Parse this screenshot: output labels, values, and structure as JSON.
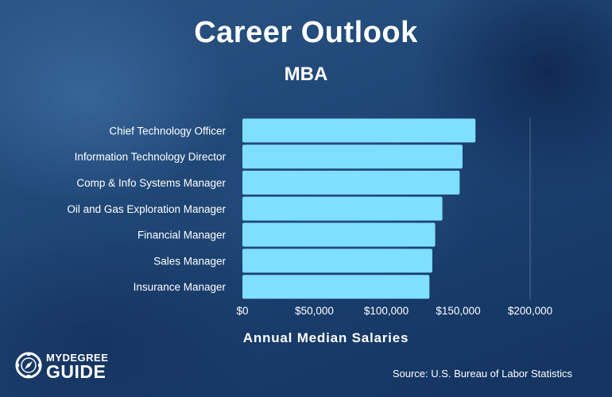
{
  "header": {
    "title": "Career Outlook",
    "subtitle": "MBA"
  },
  "chart_data": {
    "type": "bar",
    "orientation": "horizontal",
    "title": "Career Outlook",
    "subtitle": "MBA",
    "xlabel": "Annual Median Salaries",
    "ylabel": "",
    "categories": [
      "Chief Technology Officer",
      "Information Technology Director",
      "Comp & Info Systems Manager",
      "Oil and Gas Exploration Manager",
      "Financial Manager",
      "Sales Manager",
      "Insurance Manager"
    ],
    "values": [
      162000,
      153000,
      151000,
      139000,
      134000,
      132000,
      130000
    ],
    "xlim": [
      0,
      200000
    ],
    "ticks": [
      0,
      50000,
      100000,
      150000,
      200000
    ],
    "tick_labels": [
      "$0",
      "$50,000",
      "$100,000",
      "$150,000",
      "$200,000"
    ],
    "grid": "vertical line at $200,000",
    "legend": "none",
    "bar_color": "#7fdfff"
  },
  "footer": {
    "source": "Source: U.S. Bureau of Labor Statistics",
    "logo_top": "MYDEGREE",
    "logo_bottom": "GUIDE",
    "logo_icon": "compass-icon"
  },
  "colors": {
    "background": "#1e4574",
    "bar": "#7fdfff",
    "text": "#ffffff"
  }
}
